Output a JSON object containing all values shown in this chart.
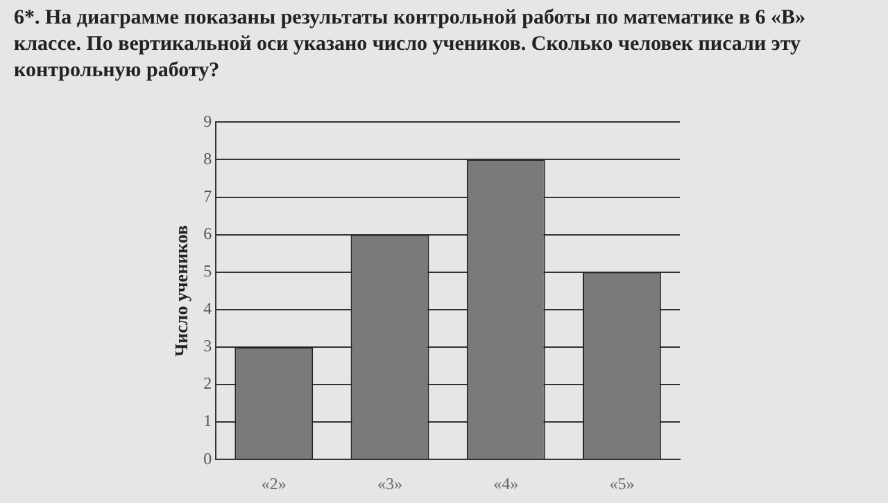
{
  "chart_data": {
    "type": "bar",
    "title": "6*. На диаграмме показаны результаты контрольной работы по математике в 6 «В» классе. По вертикальной оси указано число учеников. Сколько человек писали эту контрольную работу?",
    "ylabel": "Число учеников",
    "categories": [
      "«2»",
      "«3»",
      "«4»",
      "«5»"
    ],
    "values": [
      3,
      6,
      8,
      5
    ],
    "color": "#7a7a7a",
    "ylim": [
      0,
      9
    ],
    "yticks": [
      0,
      1,
      2,
      3,
      4,
      5,
      6,
      7,
      8,
      9
    ],
    "grid": "y"
  }
}
